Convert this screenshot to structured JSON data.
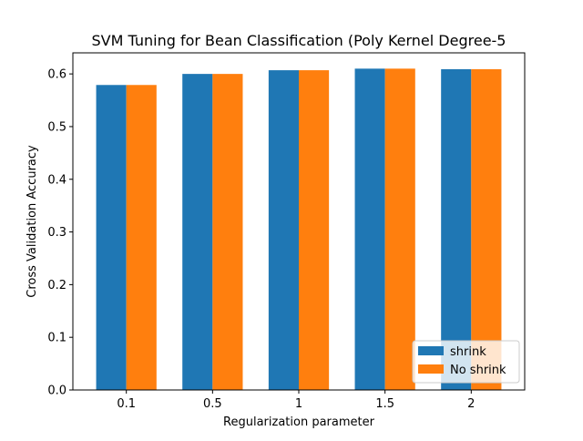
{
  "chart_data": {
    "type": "bar",
    "title": "SVM Tuning for Bean Classification (Poly Kernel Degree-5",
    "xlabel": "Regularization parameter",
    "ylabel": "Cross Validation Accuracy",
    "categories": [
      "0.1",
      "0.5",
      "1",
      "1.5",
      "2"
    ],
    "series": [
      {
        "name": "shrink",
        "color": "#1f77b4",
        "values": [
          0.579,
          0.6,
          0.607,
          0.61,
          0.609
        ]
      },
      {
        "name": "No shrink",
        "color": "#ff7f0e",
        "values": [
          0.579,
          0.6,
          0.607,
          0.61,
          0.609
        ]
      }
    ],
    "ylim": [
      0,
      0.64
    ],
    "yticks": [
      0.0,
      0.1,
      0.2,
      0.3,
      0.4,
      0.5,
      0.6
    ],
    "ytick_labels": [
      "0.0",
      "0.1",
      "0.2",
      "0.3",
      "0.4",
      "0.5",
      "0.6"
    ],
    "grid": false,
    "legend_position": "lower-right"
  }
}
